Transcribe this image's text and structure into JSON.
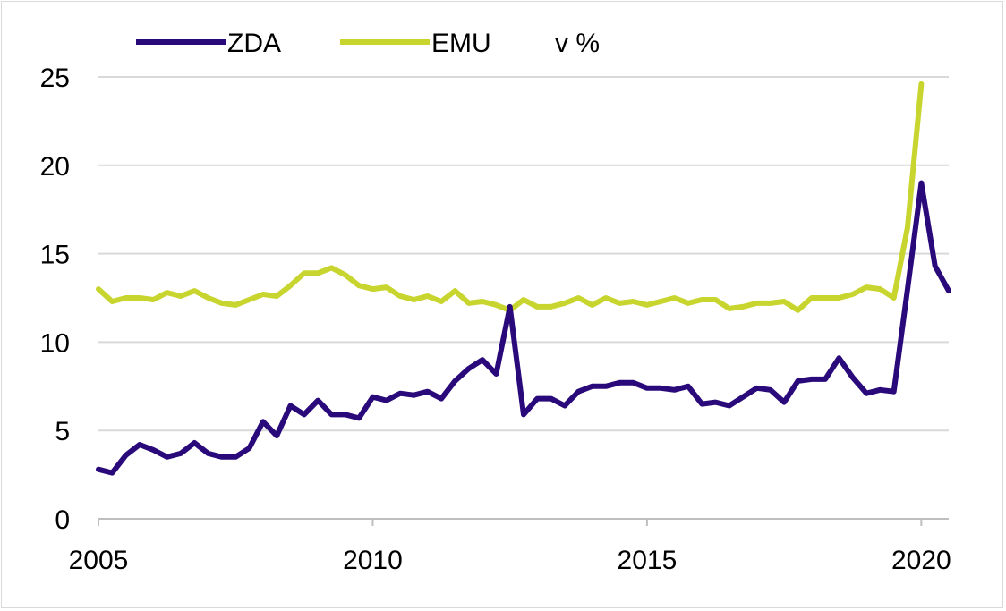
{
  "chart_data": {
    "type": "line",
    "title": "",
    "xlabel": "",
    "ylabel": "",
    "unit_label": "v %",
    "xlim": [
      2005,
      2020.5
    ],
    "ylim": [
      0,
      25
    ],
    "yticks": [
      0,
      5,
      10,
      15,
      20,
      25
    ],
    "xticks": [
      2005,
      2010,
      2015,
      2020
    ],
    "grid": true,
    "legend_position": "top-left",
    "x": [
      2005.0,
      2005.25,
      2005.5,
      2005.75,
      2006.0,
      2006.25,
      2006.5,
      2006.75,
      2007.0,
      2007.25,
      2007.5,
      2007.75,
      2008.0,
      2008.25,
      2008.5,
      2008.75,
      2009.0,
      2009.25,
      2009.5,
      2009.75,
      2010.0,
      2010.25,
      2010.5,
      2010.75,
      2011.0,
      2011.25,
      2011.5,
      2011.75,
      2012.0,
      2012.25,
      2012.5,
      2012.75,
      2013.0,
      2013.25,
      2013.5,
      2013.75,
      2014.0,
      2014.25,
      2014.5,
      2014.75,
      2015.0,
      2015.25,
      2015.5,
      2015.75,
      2016.0,
      2016.25,
      2016.5,
      2016.75,
      2017.0,
      2017.25,
      2017.5,
      2017.75,
      2018.0,
      2018.25,
      2018.5,
      2018.75,
      2019.0,
      2019.25,
      2019.5,
      2019.75,
      2020.0,
      2020.25,
      2020.5
    ],
    "series": [
      {
        "name": "ZDA",
        "color": "#2a0a7a",
        "values": [
          2.8,
          2.6,
          3.6,
          4.2,
          3.9,
          3.5,
          3.7,
          4.3,
          3.7,
          3.5,
          3.5,
          4.0,
          5.5,
          4.7,
          6.4,
          5.9,
          6.7,
          5.9,
          5.9,
          5.7,
          6.9,
          6.7,
          7.1,
          7.0,
          7.2,
          6.8,
          7.8,
          8.5,
          9.0,
          8.2,
          12.0,
          5.9,
          6.8,
          6.8,
          6.4,
          7.2,
          7.5,
          7.5,
          7.7,
          7.7,
          7.4,
          7.4,
          7.3,
          7.5,
          6.5,
          6.6,
          6.4,
          6.9,
          7.4,
          7.3,
          6.6,
          7.8,
          7.9,
          7.9,
          9.1,
          8.0,
          7.1,
          7.3,
          7.2,
          13.0,
          19.0,
          14.3,
          12.9
        ]
      },
      {
        "name": "EMU",
        "color": "#c8d52e",
        "values": [
          13.0,
          12.3,
          12.5,
          12.5,
          12.4,
          12.8,
          12.6,
          12.9,
          12.5,
          12.2,
          12.1,
          12.4,
          12.7,
          12.6,
          13.2,
          13.9,
          13.9,
          14.2,
          13.8,
          13.2,
          13.0,
          13.1,
          12.6,
          12.4,
          12.6,
          12.3,
          12.9,
          12.2,
          12.3,
          12.1,
          11.8,
          12.4,
          12.0,
          12.0,
          12.2,
          12.5,
          12.1,
          12.5,
          12.2,
          12.3,
          12.1,
          12.3,
          12.5,
          12.2,
          12.4,
          12.4,
          11.9,
          12.0,
          12.2,
          12.2,
          12.3,
          11.8,
          12.5,
          12.5,
          12.5,
          12.7,
          13.1,
          13.0,
          12.5,
          16.5,
          24.6,
          null,
          null
        ]
      }
    ]
  }
}
